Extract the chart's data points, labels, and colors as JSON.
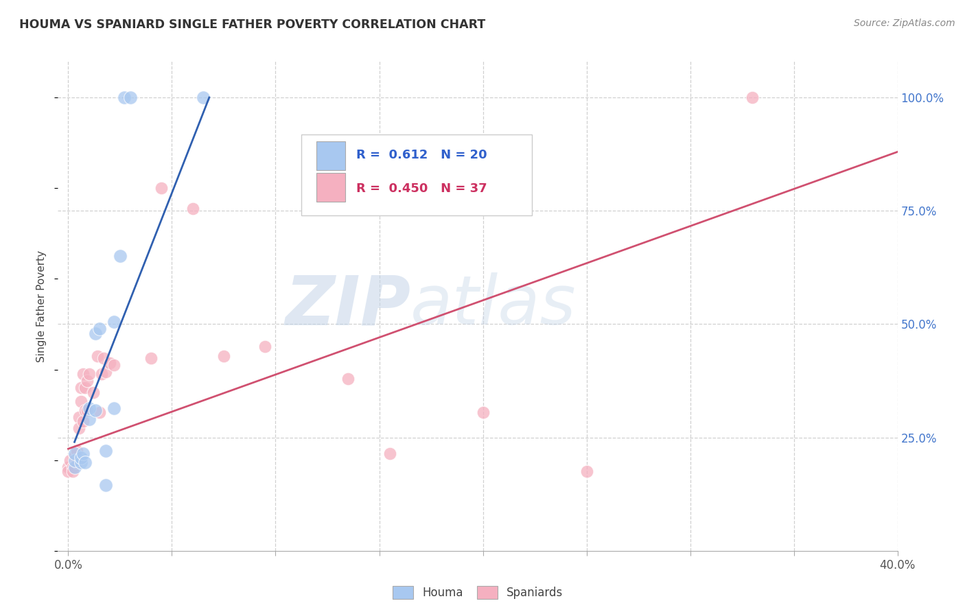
{
  "title": "HOUMA VS SPANIARD SINGLE FATHER POVERTY CORRELATION CHART",
  "source": "Source: ZipAtlas.com",
  "ylabel": "Single Father Poverty",
  "right_yticks": [
    "100.0%",
    "75.0%",
    "50.0%",
    "25.0%"
  ],
  "right_ytick_vals": [
    1.0,
    0.75,
    0.5,
    0.25
  ],
  "legend_blue_r": "0.612",
  "legend_blue_n": "20",
  "legend_pink_r": "0.450",
  "legend_pink_n": "37",
  "legend_labels": [
    "Houma",
    "Spaniards"
  ],
  "blue_color": "#a8c8f0",
  "pink_color": "#f5b0c0",
  "blue_line_color": "#3060b0",
  "pink_line_color": "#d05070",
  "watermark_zip": "ZIP",
  "watermark_atlas": "atlas",
  "background_color": "#ffffff",
  "houma_x": [
    0.003,
    0.003,
    0.003,
    0.006,
    0.006,
    0.007,
    0.008,
    0.01,
    0.01,
    0.013,
    0.013,
    0.015,
    0.018,
    0.018,
    0.022,
    0.022,
    0.025,
    0.027,
    0.03,
    0.065
  ],
  "houma_y": [
    0.185,
    0.2,
    0.215,
    0.195,
    0.205,
    0.215,
    0.195,
    0.29,
    0.315,
    0.48,
    0.31,
    0.49,
    0.22,
    0.145,
    0.505,
    0.315,
    0.65,
    1.0,
    1.0,
    1.0
  ],
  "spaniards_x": [
    0.0,
    0.0,
    0.001,
    0.002,
    0.002,
    0.003,
    0.004,
    0.004,
    0.005,
    0.005,
    0.006,
    0.006,
    0.007,
    0.007,
    0.008,
    0.008,
    0.009,
    0.009,
    0.01,
    0.012,
    0.014,
    0.015,
    0.016,
    0.017,
    0.018,
    0.02,
    0.022,
    0.04,
    0.045,
    0.06,
    0.075,
    0.095,
    0.135,
    0.155,
    0.2,
    0.25,
    0.33
  ],
  "spaniards_y": [
    0.185,
    0.175,
    0.2,
    0.185,
    0.175,
    0.21,
    0.22,
    0.195,
    0.295,
    0.27,
    0.36,
    0.33,
    0.285,
    0.39,
    0.36,
    0.31,
    0.375,
    0.31,
    0.39,
    0.35,
    0.43,
    0.305,
    0.39,
    0.425,
    0.395,
    0.415,
    0.41,
    0.425,
    0.8,
    0.755,
    0.43,
    0.45,
    0.38,
    0.215,
    0.305,
    0.175,
    1.0
  ],
  "blue_trendline_x": [
    0.003,
    0.068
  ],
  "blue_trendline_y": [
    0.24,
    1.0
  ],
  "pink_trendline_x": [
    0.0,
    0.4
  ],
  "pink_trendline_y": [
    0.225,
    0.88
  ],
  "xlim": [
    -0.005,
    0.4
  ],
  "ylim": [
    0.0,
    1.08
  ],
  "xticks": [
    0.0,
    0.05,
    0.1,
    0.15,
    0.2,
    0.25,
    0.3,
    0.35,
    0.4
  ],
  "grid_ytick_vals": [
    0.25,
    0.5,
    0.75,
    1.0
  ],
  "grid_xtick_vals": [
    0.0,
    0.05,
    0.1,
    0.15,
    0.2,
    0.25,
    0.3,
    0.35,
    0.4
  ],
  "grid_color": "#d0d0d0",
  "dot_size_blue": 200,
  "dot_size_pink": 180,
  "dot_alpha": 0.75
}
